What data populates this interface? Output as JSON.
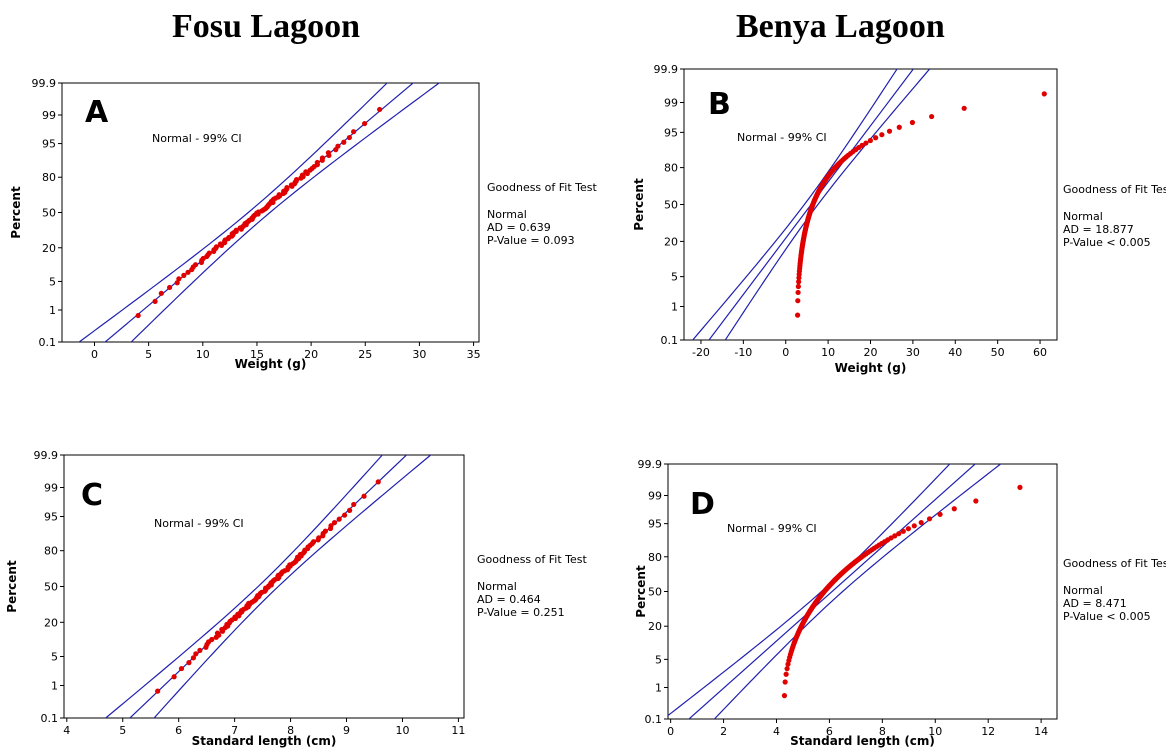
{
  "titles": {
    "left": "Fosu Lagoon",
    "right": "Benya Lagoon"
  },
  "colors": {
    "points": "#e00000",
    "lines": "#2020b0",
    "frame": "#000000"
  },
  "chart_data": [
    {
      "id": "A",
      "type": "scatter",
      "panel_label": "A",
      "legend_text": "Normal - 99% CI",
      "xlabel": "Weight (g)",
      "ylabel": "Percent",
      "x_ticks": [
        0,
        5,
        10,
        15,
        20,
        25,
        30,
        35
      ],
      "xlim": [
        -3,
        35.5
      ],
      "y_ticks": [
        0.1,
        1,
        5,
        20,
        50,
        80,
        95,
        99,
        99.9
      ],
      "y_tick_labels": [
        "0.1",
        "1",
        "5",
        "20",
        "50",
        "80",
        "95",
        "99",
        "99.9"
      ],
      "ylim": [
        0.1,
        99.9
      ],
      "y_scale": "normal-probability",
      "fit_line": {
        "mean": 15.2,
        "sd": 4.6
      },
      "ci_band": {
        "confidence": 99,
        "lower_offset_at_mean": 1.0,
        "upper_offset_at_mean": 1.0
      },
      "sample": {
        "n": 100,
        "mean": 15.2,
        "sd": 4.6,
        "skew": 0
      },
      "goodness_of_fit": {
        "heading": "Goodness of Fit Test",
        "distribution": "Normal",
        "ad": "AD = 0.639",
        "p": "P-Value = 0.093"
      }
    },
    {
      "id": "B",
      "type": "scatter",
      "panel_label": "B",
      "legend_text": "Normal - 99% CI",
      "xlabel": "Weight (g)",
      "ylabel": "Percent",
      "x_ticks": [
        -20,
        -10,
        0,
        10,
        20,
        30,
        40,
        50,
        60
      ],
      "xlim": [
        -24,
        64
      ],
      "y_ticks": [
        0.1,
        1,
        5,
        20,
        50,
        80,
        95,
        99,
        99.9
      ],
      "y_tick_labels": [
        "0.1",
        "1",
        "5",
        "20",
        "50",
        "80",
        "95",
        "99",
        "99.9"
      ],
      "ylim": [
        0.1,
        99.9
      ],
      "y_scale": "normal-probability",
      "fit_line": {
        "mean": 6.0,
        "sd": 7.8
      },
      "ci_band": {
        "confidence": 99,
        "lower_offset_at_mean": 1.6,
        "upper_offset_at_mean": 1.6
      },
      "sample": {
        "n": 120,
        "mean": 6.0,
        "sd": 7.8,
        "skew": 1,
        "low": 2.8,
        "high": 61
      },
      "goodness_of_fit": {
        "heading": "Goodness of Fit Test",
        "distribution": "Normal",
        "ad": "AD = 18.877",
        "p": "P-Value < 0.005"
      }
    },
    {
      "id": "C",
      "type": "scatter",
      "panel_label": "C",
      "legend_text": "Normal - 99% CI",
      "xlabel": "Standard length (cm)",
      "ylabel": "Percent",
      "x_ticks": [
        4,
        5,
        6,
        7,
        8,
        9,
        10,
        11
      ],
      "xlim": [
        3.95,
        11.1
      ],
      "y_ticks": [
        0.1,
        1,
        5,
        20,
        50,
        80,
        95,
        99,
        99.9
      ],
      "y_tick_labels": [
        "0.1",
        "1",
        "5",
        "20",
        "50",
        "80",
        "95",
        "99",
        "99.9"
      ],
      "ylim": [
        0.1,
        99.9
      ],
      "y_scale": "normal-probability",
      "fit_line": {
        "mean": 7.6,
        "sd": 0.8
      },
      "ci_band": {
        "confidence": 99,
        "lower_offset_at_mean": 0.18,
        "upper_offset_at_mean": 0.18
      },
      "sample": {
        "n": 100,
        "mean": 7.6,
        "sd": 0.8,
        "skew": 0
      },
      "goodness_of_fit": {
        "heading": "Goodness of Fit Test",
        "distribution": "Normal",
        "ad": "AD = 0.464",
        "p": "P-Value = 0.251"
      }
    },
    {
      "id": "D",
      "type": "scatter",
      "panel_label": "D",
      "legend_text": "Normal - 99% CI",
      "xlabel": "Standard length (cm)",
      "ylabel": "Percent",
      "x_ticks": [
        0,
        2,
        4,
        6,
        8,
        10,
        12,
        14
      ],
      "xlim": [
        -0.1,
        14.6
      ],
      "y_ticks": [
        0.1,
        1,
        5,
        20,
        50,
        80,
        95,
        99,
        99.9
      ],
      "y_tick_labels": [
        "0.1",
        "1",
        "5",
        "20",
        "50",
        "80",
        "95",
        "99",
        "99.9"
      ],
      "ylim": [
        0.1,
        99.9
      ],
      "y_scale": "normal-probability",
      "fit_line": {
        "mean": 6.1,
        "sd": 1.75
      },
      "ci_band": {
        "confidence": 99,
        "lower_offset_at_mean": 0.4,
        "upper_offset_at_mean": 0.4
      },
      "sample": {
        "n": 120,
        "mean": 6.1,
        "sd": 1.75,
        "skew": 1,
        "low": 4.3,
        "high": 13.2
      },
      "goodness_of_fit": {
        "heading": "Goodness of Fit Test",
        "distribution": "Normal",
        "ad": "AD = 8.471",
        "p": "P-Value < 0.005"
      }
    }
  ]
}
